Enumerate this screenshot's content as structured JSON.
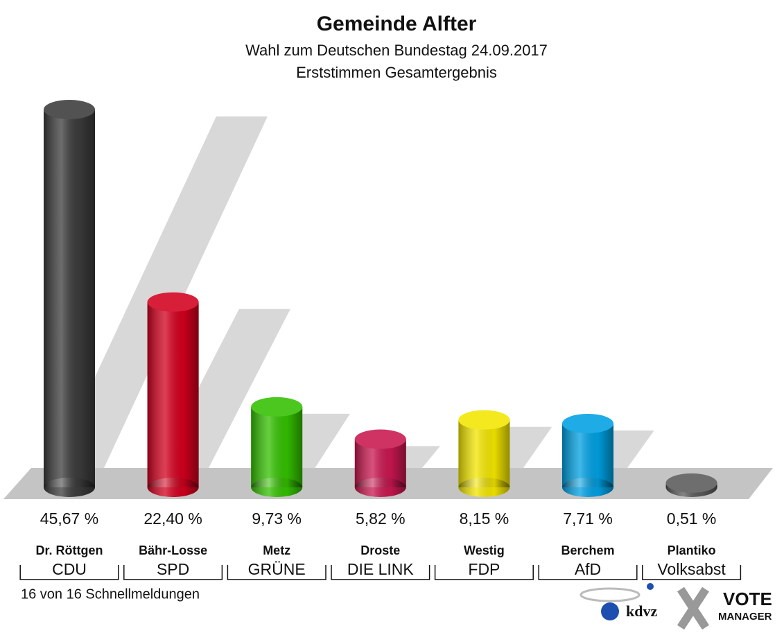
{
  "chart_data": {
    "type": "bar",
    "title": "Gemeinde Alfter",
    "subtitle": "Wahl zum Deutschen Bundestag 24.09.2017",
    "subtitle2": "Erststimmen Gesamtergebnis",
    "categories": [
      "Dr. Röttgen",
      "Bähr-Losse",
      "Metz",
      "Droste",
      "Westig",
      "Berchem",
      "Plantiko"
    ],
    "parties": [
      "CDU",
      "SPD",
      "GRÜNE",
      "DIE LINK",
      "FDP",
      "AfD",
      "Volksabst"
    ],
    "values": [
      45.67,
      22.4,
      9.73,
      5.82,
      8.15,
      7.71,
      0.51
    ],
    "value_labels": [
      "45,67 %",
      "22,40 %",
      "9,73 %",
      "5,82 %",
      "8,15 %",
      "7,71 %",
      "0,51 %"
    ],
    "colors": [
      "#3b3b3b",
      "#d2001e",
      "#33c000",
      "#c8174f",
      "#f3e600",
      "#00a0e2",
      "#5a5a5a"
    ],
    "footer": "16 von 16 Schnellmeldungen",
    "logo_kdvz": "kdvz",
    "logo_vote": "VOTE",
    "logo_manager": "MANAGER"
  }
}
